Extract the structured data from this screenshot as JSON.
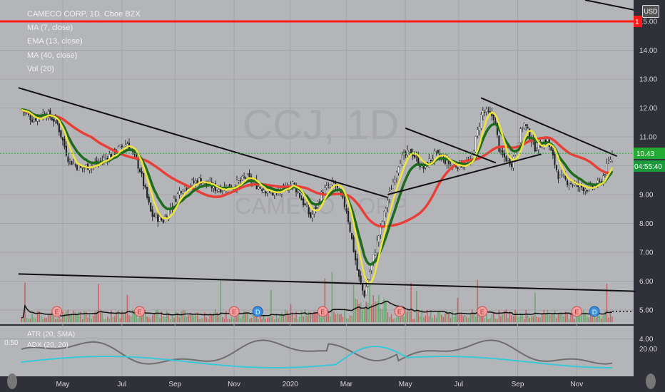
{
  "legend": {
    "symbol": "CAMECO CORP, 1D, Cboe BZX",
    "ma7": "MA (7, close)",
    "ema13": "EMA (13, close)",
    "ma40": "MA (40, close)",
    "vol": "Vol (20)"
  },
  "indicator_legend": {
    "atr": "ATR (20, SMA)",
    "adx": "ADX (20, 20)",
    "left_value": "0.50"
  },
  "watermark": {
    "ticker": "CCJ, 1D",
    "name": "CAMECO CORP"
  },
  "currency_button": "USD",
  "price_label": "10.43",
  "countdown_label": "04:55:40",
  "top_level_label": "1",
  "colors": {
    "background": "#b4b5b9",
    "axis_background": "#2f3038",
    "ma7": "#f0e43c",
    "ema13": "#1e6b1e",
    "ma40": "#e84038",
    "atr": "#6e6e6e",
    "adx": "#38c8d8",
    "trendline": "#111111",
    "resistance": "#ff1a1a",
    "price_line": "#22aa33",
    "countdown_bg": "#1a9a3a"
  },
  "chart_data": {
    "type": "candlestick",
    "title": "CAMECO CORP, 1D, Cboe BZX",
    "price_axis_ticks": [
      "15.00",
      "14.00",
      "13.00",
      "12.00",
      "11.00",
      "10.00",
      "9.00",
      "8.00",
      "7.00",
      "6.00",
      "5.00",
      "4.00"
    ],
    "indicator_axis_ticks": [
      "20.00"
    ],
    "x_ticks": [
      "May",
      "Jul",
      "Sep",
      "Nov",
      "2020",
      "Mar",
      "May",
      "Jul",
      "Sep",
      "Nov"
    ],
    "ylim": [
      4.0,
      15.6
    ],
    "last_price": 10.43,
    "resistance_level": 15.0,
    "close_path": [
      {
        "t": 0,
        "p": 11.95
      },
      {
        "t": 2,
        "p": 11.6
      },
      {
        "t": 4,
        "p": 11.85
      },
      {
        "t": 6,
        "p": 11.5
      },
      {
        "t": 8,
        "p": 10.2
      },
      {
        "t": 10,
        "p": 9.9
      },
      {
        "t": 13,
        "p": 10.1
      },
      {
        "t": 16,
        "p": 10.5
      },
      {
        "t": 18,
        "p": 10.8
      },
      {
        "t": 20,
        "p": 9.9
      },
      {
        "t": 22,
        "p": 8.3
      },
      {
        "t": 24,
        "p": 8.1
      },
      {
        "t": 27,
        "p": 9.2
      },
      {
        "t": 30,
        "p": 9.5
      },
      {
        "t": 33,
        "p": 9.2
      },
      {
        "t": 36,
        "p": 9.3
      },
      {
        "t": 38,
        "p": 9.6
      },
      {
        "t": 40,
        "p": 9.3
      },
      {
        "t": 43,
        "p": 9.0
      },
      {
        "t": 46,
        "p": 9.4
      },
      {
        "t": 49,
        "p": 8.2
      },
      {
        "t": 51,
        "p": 9.1
      },
      {
        "t": 53,
        "p": 9.4
      },
      {
        "t": 55,
        "p": 8.5
      },
      {
        "t": 57,
        "p": 6.2
      },
      {
        "t": 58,
        "p": 5.5
      },
      {
        "t": 60,
        "p": 7.2
      },
      {
        "t": 62,
        "p": 8.8
      },
      {
        "t": 64,
        "p": 10.2
      },
      {
        "t": 66,
        "p": 10.5
      },
      {
        "t": 68,
        "p": 9.9
      },
      {
        "t": 70,
        "p": 10.4
      },
      {
        "t": 73,
        "p": 10.0
      },
      {
        "t": 76,
        "p": 10.1
      },
      {
        "t": 78,
        "p": 11.9
      },
      {
        "t": 80,
        "p": 11.7
      },
      {
        "t": 81,
        "p": 10.4
      },
      {
        "t": 83,
        "p": 10.1
      },
      {
        "t": 85,
        "p": 11.5
      },
      {
        "t": 87,
        "p": 10.6
      },
      {
        "t": 89,
        "p": 10.9
      },
      {
        "t": 91,
        "p": 9.6
      },
      {
        "t": 94,
        "p": 9.3
      },
      {
        "t": 96,
        "p": 9.2
      },
      {
        "t": 98,
        "p": 9.4
      },
      {
        "t": 100,
        "p": 10.4
      }
    ],
    "volume_markers": [
      "E",
      "E",
      "E",
      "D",
      "E",
      "E",
      "E",
      "E",
      "D"
    ]
  }
}
